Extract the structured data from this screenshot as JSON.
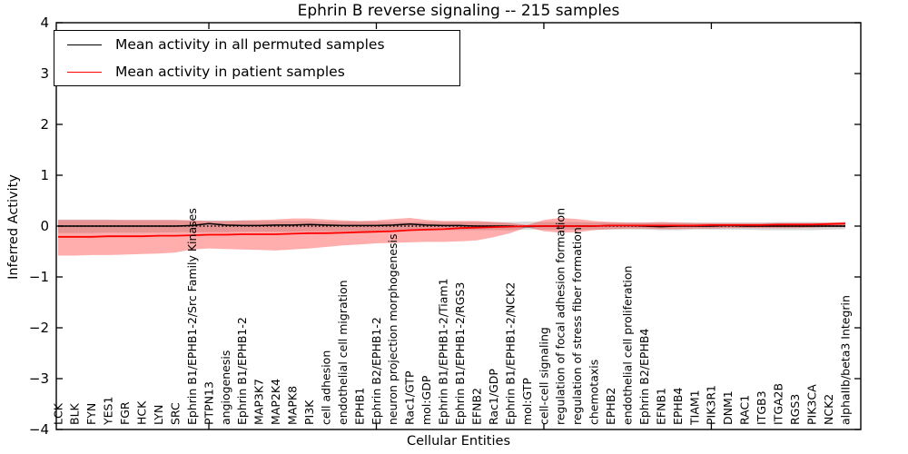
{
  "chart_data": {
    "type": "line",
    "title": "Ephrin B reverse signaling -- 215 samples",
    "xlabel": "Cellular Entities",
    "ylabel": "Inferred Activity",
    "ylim": [
      -4,
      4
    ],
    "grid": false,
    "legend_position": "upper-left",
    "legend": [
      {
        "label": "Mean activity in all permuted samples",
        "color": "#000000"
      },
      {
        "label": "Mean activity in patient samples",
        "color": "#ff0000"
      }
    ],
    "ytick_values": [
      4,
      3,
      2,
      1,
      0,
      -1,
      -2,
      -3,
      -4
    ],
    "ytick_labels": [
      "4",
      "3",
      "2",
      "1",
      "0",
      "−1",
      "−2",
      "−3",
      "−4"
    ],
    "x_major_tick_indices": [
      9,
      19,
      29,
      39
    ],
    "categories": [
      "LCK",
      "BLK",
      "FYN",
      "YES1",
      "FGR",
      "HCK",
      "LYN",
      "SRC",
      "Ephrin B1/EPHB1-2/Src Family Kinases",
      "PTPN13",
      "angiogenesis",
      "Ephrin B1/EPHB1-2",
      "MAP3K7",
      "MAP2K4",
      "MAPK8",
      "PI3K",
      "cell adhesion",
      "endothelial cell migration",
      "EPHB1",
      "Ephrin B2/EPHB1-2",
      "neuron projection morphogenesis",
      "Rac1/GTP",
      "mol:GDP",
      "Ephrin B1/EPHB1-2/Tiam1",
      "Ephrin B1/EPHB1-2/RGS3",
      "EFNB2",
      "Rac1/GDP",
      "Ephrin B1/EPHB1-2/NCK2",
      "mol:GTP",
      "cell-cell signaling",
      "regulation of focal adhesion formation",
      "regulation of stress fiber formation",
      "chemotaxis",
      "EPHB2",
      "endothelial cell proliferation",
      "Ephrin B2/EPHB4",
      "EFNB1",
      "EPHB4",
      "TIAM1",
      "PIK3R1",
      "DNM1",
      "RAC1",
      "ITGB3",
      "ITGA2B",
      "RGS3",
      "PIK3CA",
      "NCK2",
      "alphaIIb/beta3 Integrin"
    ],
    "series": [
      {
        "name": "Mean activity in all permuted samples",
        "color": "#000000",
        "values": [
          0.0,
          0.0,
          0.0,
          0.0,
          0.0,
          0.0,
          0.0,
          0.0,
          0.01,
          0.05,
          0.02,
          0.01,
          0.01,
          0.02,
          0.02,
          0.03,
          0.02,
          0.01,
          0.01,
          0.01,
          0.02,
          0.04,
          0.02,
          0.01,
          0.01,
          0.0,
          0.0,
          0.0,
          -0.01,
          0.0,
          0.0,
          0.0,
          0.0,
          0.01,
          0.01,
          0.0,
          -0.01,
          0.0,
          0.0,
          0.0,
          0.01,
          0.0,
          0.0,
          0.0,
          0.0,
          0.0,
          0.0,
          0.0
        ]
      },
      {
        "name": "Mean activity in patient samples",
        "color": "#ff0000",
        "values": [
          -0.21,
          -0.21,
          -0.21,
          -0.2,
          -0.2,
          -0.2,
          -0.19,
          -0.19,
          -0.18,
          -0.17,
          -0.17,
          -0.16,
          -0.16,
          -0.16,
          -0.15,
          -0.14,
          -0.14,
          -0.13,
          -0.12,
          -0.11,
          -0.1,
          -0.08,
          -0.07,
          -0.06,
          -0.04,
          -0.03,
          -0.02,
          -0.01,
          0.0,
          0.0,
          0.0,
          0.0,
          0.0,
          0.01,
          0.01,
          0.01,
          0.01,
          0.01,
          0.01,
          0.02,
          0.02,
          0.02,
          0.02,
          0.03,
          0.03,
          0.03,
          0.04,
          0.05
        ]
      }
    ],
    "bands": [
      {
        "name": "permuted-samples-range",
        "color": "rgba(128,128,128,0.30)",
        "upper": [
          0.13,
          0.13,
          0.13,
          0.13,
          0.12,
          0.12,
          0.12,
          0.12,
          0.11,
          0.11,
          0.11,
          0.11,
          0.1,
          0.1,
          0.1,
          0.1,
          0.09,
          0.09,
          0.09,
          0.09,
          0.08,
          0.08,
          0.08,
          0.08,
          0.08,
          0.08,
          0.08,
          0.08,
          0.09,
          0.08,
          0.08,
          0.08,
          0.07,
          0.07,
          0.07,
          0.07,
          0.07,
          0.07,
          0.07,
          0.07,
          0.07,
          0.07,
          0.07,
          0.08,
          0.08,
          0.08,
          0.07,
          0.07
        ],
        "lower": [
          -0.14,
          -0.14,
          -0.14,
          -0.13,
          -0.13,
          -0.13,
          -0.13,
          -0.12,
          -0.12,
          -0.12,
          -0.12,
          -0.11,
          -0.11,
          -0.11,
          -0.11,
          -0.1,
          -0.1,
          -0.1,
          -0.1,
          -0.09,
          -0.09,
          -0.09,
          -0.09,
          -0.08,
          -0.08,
          -0.08,
          -0.08,
          -0.08,
          -0.07,
          -0.07,
          -0.07,
          -0.07,
          -0.07,
          -0.07,
          -0.07,
          -0.07,
          -0.08,
          -0.08,
          -0.07,
          -0.07,
          -0.07,
          -0.07,
          -0.08,
          -0.08,
          -0.08,
          -0.08,
          -0.07,
          -0.06
        ]
      },
      {
        "name": "patient-samples-range",
        "color": "rgba(255,0,0,0.32)",
        "upper": [
          0.12,
          0.12,
          0.12,
          0.12,
          0.12,
          0.12,
          0.12,
          0.12,
          0.11,
          0.1,
          0.1,
          0.11,
          0.12,
          0.13,
          0.15,
          0.15,
          0.13,
          0.11,
          0.1,
          0.11,
          0.14,
          0.16,
          0.12,
          0.1,
          0.1,
          0.1,
          0.08,
          0.06,
          0.02,
          0.12,
          0.16,
          0.14,
          0.1,
          0.08,
          0.07,
          0.07,
          0.08,
          0.07,
          0.06,
          0.06,
          0.06,
          0.06,
          0.06,
          0.06,
          0.06,
          0.06,
          0.07,
          0.08
        ],
        "lower": [
          -0.58,
          -0.58,
          -0.57,
          -0.57,
          -0.56,
          -0.55,
          -0.54,
          -0.52,
          -0.46,
          -0.44,
          -0.45,
          -0.46,
          -0.47,
          -0.48,
          -0.46,
          -0.44,
          -0.41,
          -0.38,
          -0.36,
          -0.34,
          -0.33,
          -0.32,
          -0.31,
          -0.31,
          -0.3,
          -0.28,
          -0.22,
          -0.14,
          -0.02,
          -0.1,
          -0.13,
          -0.12,
          -0.08,
          -0.06,
          -0.05,
          -0.05,
          -0.06,
          -0.06,
          -0.05,
          -0.05,
          -0.04,
          -0.04,
          -0.04,
          -0.04,
          -0.04,
          -0.03,
          -0.02,
          -0.02
        ]
      }
    ],
    "zero_line": {
      "value": 0,
      "style": "dotted",
      "color": "#000000"
    }
  }
}
